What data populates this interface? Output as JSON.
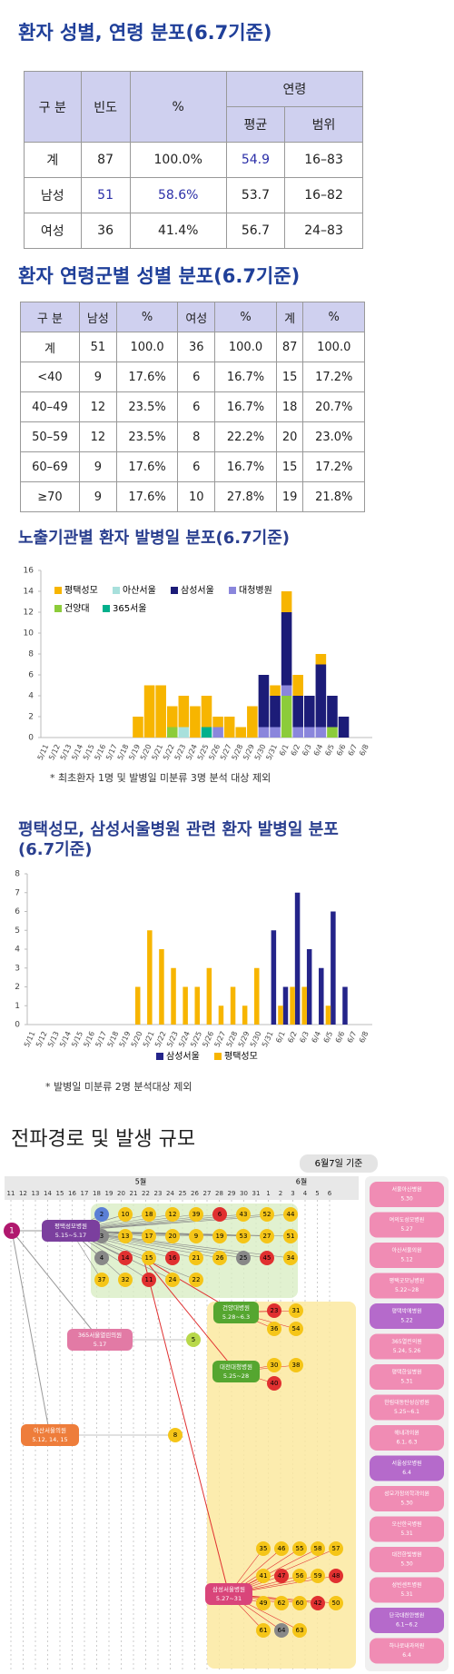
{
  "section1": {
    "title": "환자 성별, 연령 분포(6.7기준)",
    "table": {
      "header": [
        "구 분",
        "빈도",
        "%",
        "연령"
      ],
      "subheader": [
        "평균",
        "범위"
      ],
      "rows": [
        [
          "계",
          "87",
          "100.0%",
          "54.9",
          "16–83"
        ],
        [
          "남성",
          "51",
          "58.6%",
          "53.7",
          "16–82"
        ],
        [
          "여성",
          "36",
          "41.4%",
          "56.7",
          "24–83"
        ]
      ]
    }
  },
  "section2": {
    "title": "환자 연령군별 성별 분포(6.7기준)",
    "table": {
      "header": [
        "구 분",
        "남성",
        "%",
        "여성",
        "%",
        "계",
        "%"
      ],
      "rows": [
        [
          "계",
          "51",
          "100.0",
          "36",
          "100.0",
          "87",
          "100.0"
        ],
        [
          "<40",
          "9",
          "17.6%",
          "6",
          "16.7%",
          "15",
          "17.2%"
        ],
        [
          "40–49",
          "12",
          "23.5%",
          "6",
          "16.7%",
          "18",
          "20.7%"
        ],
        [
          "50–59",
          "12",
          "23.5%",
          "8",
          "22.2%",
          "20",
          "23.0%"
        ],
        [
          "60–69",
          "9",
          "17.6%",
          "6",
          "16.7%",
          "15",
          "17.2%"
        ],
        [
          "≥70",
          "9",
          "17.6%",
          "10",
          "27.8%",
          "19",
          "21.8%"
        ]
      ]
    }
  },
  "chart_data": [
    {
      "type": "bar",
      "stacked": true,
      "title": "노출기관별 환자 발병일 분포(6.7기준)",
      "footnote": "* 최초환자 1명 및 발병일 미분류 3명 분석 대상 제외",
      "legend": "upper left",
      "categories": [
        "5/11",
        "5/12",
        "5/13",
        "5/14",
        "5/15",
        "5/16",
        "5/17",
        "5/18",
        "5/19",
        "5/20",
        "5/21",
        "5/22",
        "5/23",
        "5/24",
        "5/25",
        "5/26",
        "5/27",
        "5/28",
        "5/29",
        "5/30",
        "5/31",
        "6/1",
        "6/2",
        "6/3",
        "6/4",
        "6/5",
        "6/6",
        "6/7",
        "6/8"
      ],
      "series": [
        {
          "name": "평택성모",
          "color": "#f7b500",
          "values": [
            0,
            0,
            0,
            0,
            0,
            0,
            0,
            0,
            2,
            5,
            5,
            2,
            3,
            3,
            3,
            1,
            2,
            1,
            3,
            0,
            1,
            2,
            2,
            0,
            1,
            0,
            0,
            0,
            0
          ]
        },
        {
          "name": "아산서울",
          "color": "#a8e0dc",
          "values": [
            0,
            0,
            0,
            0,
            0,
            0,
            0,
            0,
            0,
            0,
            0,
            0,
            1,
            0,
            0,
            0,
            0,
            0,
            0,
            0,
            0,
            0,
            0,
            0,
            0,
            0,
            0,
            0,
            0
          ]
        },
        {
          "name": "삼성서울",
          "color": "#1c1c78",
          "values": [
            0,
            0,
            0,
            0,
            0,
            0,
            0,
            0,
            0,
            0,
            0,
            0,
            0,
            0,
            0,
            0,
            0,
            0,
            0,
            5,
            3,
            7,
            3,
            3,
            6,
            3,
            2,
            0,
            0
          ]
        },
        {
          "name": "대청병원",
          "color": "#8a86dc",
          "values": [
            0,
            0,
            0,
            0,
            0,
            0,
            0,
            0,
            0,
            0,
            0,
            0,
            0,
            0,
            0,
            1,
            0,
            0,
            0,
            1,
            1,
            1,
            1,
            1,
            1,
            0,
            0,
            0,
            0
          ]
        },
        {
          "name": "건양대",
          "color": "#8ccc3a",
          "values": [
            0,
            0,
            0,
            0,
            0,
            0,
            0,
            0,
            0,
            0,
            0,
            1,
            0,
            0,
            0,
            0,
            0,
            0,
            0,
            0,
            0,
            4,
            0,
            0,
            0,
            1,
            0,
            0,
            0
          ]
        },
        {
          "name": "365서울",
          "color": "#00b08c",
          "values": [
            0,
            0,
            0,
            0,
            0,
            0,
            0,
            0,
            0,
            0,
            0,
            0,
            0,
            0,
            1,
            0,
            0,
            0,
            0,
            0,
            0,
            0,
            0,
            0,
            0,
            0,
            0,
            0,
            0
          ]
        }
      ],
      "ylim": [
        0,
        16
      ],
      "yticks": [
        0,
        2,
        4,
        6,
        8,
        10,
        12,
        14,
        16
      ]
    },
    {
      "type": "bar",
      "stacked": false,
      "title": "평택성모, 삼성서울병원 관련 환자 발병일 분포 (6.7기준)",
      "footnote": "* 발병일 미분류 2명 분석대상 제외",
      "legend": "bottom",
      "categories": [
        "5/11",
        "5/12",
        "5/13",
        "5/14",
        "5/15",
        "5/16",
        "5/17",
        "5/18",
        "5/19",
        "5/20",
        "5/21",
        "5/22",
        "5/23",
        "5/24",
        "5/25",
        "5/26",
        "5/27",
        "5/28",
        "5/29",
        "5/30",
        "5/31",
        "6/1",
        "6/2",
        "6/3",
        "6/4",
        "6/5",
        "6/6",
        "6/7",
        "6/8"
      ],
      "series": [
        {
          "name": "삼성서울",
          "color": "#24248a",
          "values": [
            0,
            0,
            0,
            0,
            0,
            0,
            0,
            0,
            0,
            0,
            0,
            0,
            0,
            0,
            0,
            0,
            0,
            0,
            0,
            0,
            5,
            2,
            7,
            4,
            3,
            6,
            2,
            0,
            0
          ]
        },
        {
          "name": "평택성모",
          "color": "#f7b500",
          "values": [
            0,
            0,
            0,
            0,
            0,
            0,
            0,
            0,
            0,
            2,
            5,
            4,
            3,
            2,
            2,
            3,
            1,
            2,
            1,
            3,
            0,
            1,
            2,
            2,
            0,
            1,
            0,
            0,
            0
          ]
        }
      ],
      "ylim": [
        0,
        8
      ],
      "yticks": [
        0,
        1,
        2,
        3,
        4,
        5,
        6,
        7,
        8
      ]
    }
  ],
  "diagram": {
    "title": "전파경로 및 발생 규모",
    "as_of": "6월7일 기준",
    "months": [
      "5월",
      "6월"
    ],
    "days": [
      "11",
      "12",
      "13",
      "14",
      "15",
      "16",
      "17",
      "18",
      "19",
      "20",
      "21",
      "22",
      "23",
      "24",
      "25",
      "26",
      "27",
      "28",
      "29",
      "30",
      "31",
      "1",
      "2",
      "3",
      "4",
      "5",
      "6"
    ],
    "index_case": "1",
    "hubs": [
      {
        "name": "평택성모병원",
        "period": "5.15~5.17",
        "patients": [
          {
            "n": "2",
            "color": "#5b7fd6"
          },
          {
            "n": "10",
            "color": "#f5c518"
          },
          {
            "n": "18",
            "color": "#f5c518"
          },
          {
            "n": "12",
            "color": "#f5c518"
          },
          {
            "n": "39",
            "color": "#f5c518"
          },
          {
            "n": "6",
            "color": "#e03030"
          },
          {
            "n": "43",
            "color": "#f5c518"
          },
          {
            "n": "52",
            "color": "#f5c518"
          },
          {
            "n": "44",
            "color": "#f5c518"
          },
          {
            "n": "3",
            "color": "#888888"
          },
          {
            "n": "13",
            "color": "#f5c518"
          },
          {
            "n": "17",
            "color": "#f5c518"
          },
          {
            "n": "20",
            "color": "#f5c518"
          },
          {
            "n": "9",
            "color": "#f5c518"
          },
          {
            "n": "19",
            "color": "#f5c518"
          },
          {
            "n": "53",
            "color": "#f5c518"
          },
          {
            "n": "27",
            "color": "#f5c518"
          },
          {
            "n": "51",
            "color": "#f5c518"
          },
          {
            "n": "4",
            "color": "#888888"
          },
          {
            "n": "14",
            "color": "#e03030"
          },
          {
            "n": "15",
            "color": "#f5c518"
          },
          {
            "n": "16",
            "color": "#e03030"
          },
          {
            "n": "21",
            "color": "#f5c518"
          },
          {
            "n": "26",
            "color": "#f5c518"
          },
          {
            "n": "25",
            "color": "#888888"
          },
          {
            "n": "45",
            "color": "#e03030"
          },
          {
            "n": "34",
            "color": "#f5c518"
          },
          {
            "n": "37",
            "color": "#f5c518"
          },
          {
            "n": "32",
            "color": "#f5c518"
          },
          {
            "n": "11",
            "color": "#e03030"
          },
          {
            "n": "24",
            "color": "#f5c518"
          },
          {
            "n": "22",
            "color": "#f5c518"
          }
        ]
      },
      {
        "name": "365서울열린의원",
        "period": "5.17",
        "patients": [
          {
            "n": "5",
            "color": "#b8d84a"
          }
        ]
      },
      {
        "name": "아산서울의원",
        "period": "5.12, 14, 15",
        "patients": [
          {
            "n": "8",
            "color": "#f5c518"
          }
        ]
      },
      {
        "name": "건양대병원",
        "period": "5.28~6.3",
        "patients": [
          {
            "n": "23",
            "color": "#e03030"
          },
          {
            "n": "31",
            "color": "#f5c518"
          },
          {
            "n": "36",
            "color": "#f5c518"
          },
          {
            "n": "54",
            "color": "#f5c518"
          }
        ]
      },
      {
        "name": "대전대청병원",
        "period": "5.25~28",
        "patients": [
          {
            "n": "30",
            "color": "#f5c518"
          },
          {
            "n": "38",
            "color": "#f5c518"
          },
          {
            "n": "40",
            "color": "#e03030"
          }
        ]
      },
      {
        "name": "삼성서울병원",
        "period": "5.27~31",
        "patients": [
          {
            "n": "35",
            "color": "#f5c518"
          },
          {
            "n": "46",
            "color": "#f5c518"
          },
          {
            "n": "55",
            "color": "#f5c518"
          },
          {
            "n": "58",
            "color": "#f5c518"
          },
          {
            "n": "57",
            "color": "#f5c518"
          },
          {
            "n": "41",
            "color": "#f5c518"
          },
          {
            "n": "47",
            "color": "#e03030"
          },
          {
            "n": "56",
            "color": "#f5c518"
          },
          {
            "n": "59",
            "color": "#f5c518"
          },
          {
            "n": "48",
            "color": "#e03030"
          },
          {
            "n": "49",
            "color": "#f5c518"
          },
          {
            "n": "62",
            "color": "#f5c518"
          },
          {
            "n": "60",
            "color": "#f5c518"
          },
          {
            "n": "42",
            "color": "#e03030"
          },
          {
            "n": "50",
            "color": "#f5c518"
          },
          {
            "n": "61",
            "color": "#f5c518"
          },
          {
            "n": "64",
            "color": "#888888"
          },
          {
            "n": "63",
            "color": "#f5c518"
          }
        ]
      }
    ],
    "facilities": [
      [
        "서울아산병원",
        "5.30"
      ],
      [
        "여의도성모병원",
        "5.27"
      ],
      [
        "아산서울의원",
        "5.12"
      ],
      [
        "평택굿모닝병원",
        "5.22~28"
      ],
      [
        "평택박애병원",
        "5.22"
      ],
      [
        "365열린의원",
        "5.24, 5.26"
      ],
      [
        "평택한일병원",
        "5.31"
      ],
      [
        "한림대동탄성심병원",
        "5.25~6.1"
      ],
      [
        "해내과의원",
        "6.1, 6.3"
      ],
      [
        "서울성모병원",
        "6.4"
      ],
      [
        "성모가정의학과의원",
        "5.30"
      ],
      [
        "오산한국병원",
        "5.31"
      ],
      [
        "대전한빛병원",
        "5.30"
      ],
      [
        "성빈센트병원",
        "5.31"
      ],
      [
        "단국대천안병원",
        "6.1~6.2"
      ],
      [
        "하나로내과의원",
        "6.4"
      ]
    ]
  }
}
